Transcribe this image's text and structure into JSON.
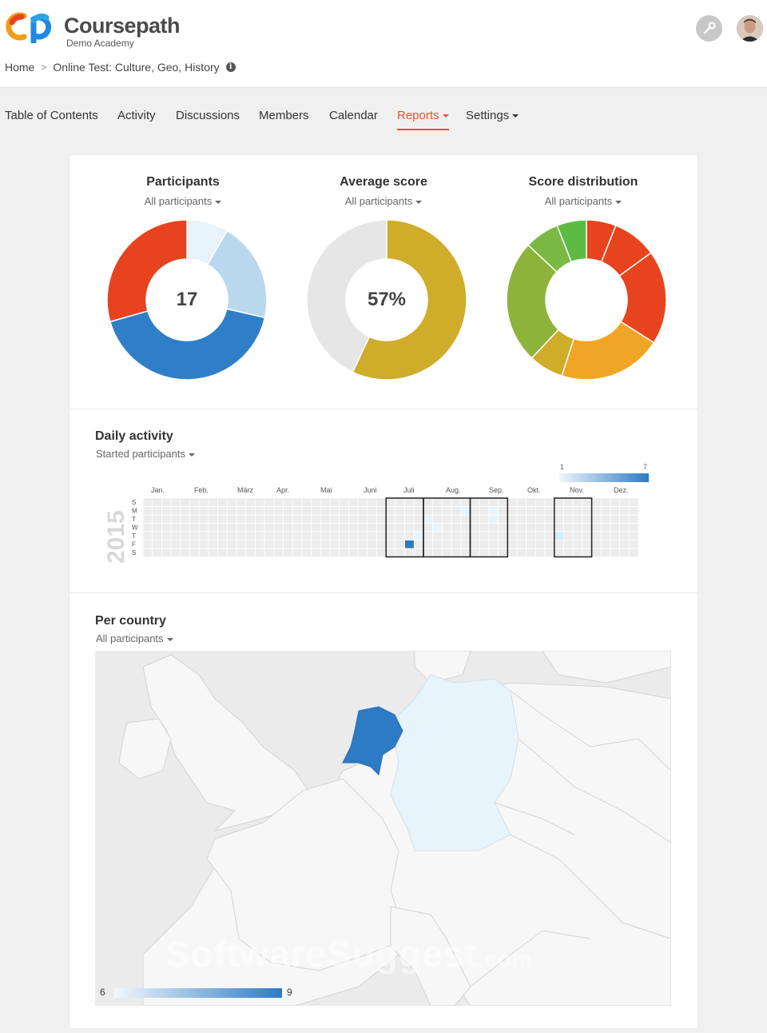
{
  "app": {
    "brand": "Coursepath",
    "subtitle": "Demo Academy"
  },
  "breadcrumb": {
    "home": "Home",
    "course": "Online Test: Culture, Geo, History"
  },
  "icons": {
    "logo": "coursepath-logo",
    "info": "info-icon",
    "settings": "wrench-icon",
    "user": "user-avatar"
  },
  "nav": {
    "items": [
      {
        "label": "Table of Contents"
      },
      {
        "label": "Activity"
      },
      {
        "label": "Discussions"
      },
      {
        "label": "Members"
      },
      {
        "label": "Calendar"
      },
      {
        "label": "Reports",
        "active": true,
        "dropdown": true
      },
      {
        "label": "Settings",
        "dropdown": true
      }
    ]
  },
  "colors": {
    "accent": "#e8542a",
    "mapHighlight": "#2d7ac5",
    "mapLight": "#e8f4fb"
  },
  "participants": {
    "title": "Participants",
    "filter": "All participants",
    "center": "17",
    "segments": [
      {
        "value": 1,
        "color": "#e8f4fb"
      },
      {
        "value": 2.4,
        "color": "#b9d8ee"
      },
      {
        "value": 5,
        "color": "#2f7fc8"
      },
      {
        "value": 3.5,
        "color": "#e8431f"
      }
    ]
  },
  "average": {
    "title": "Average score",
    "filter": "All participants",
    "center": "57%",
    "segments": [
      {
        "value": 57,
        "color": "#cfac2a"
      },
      {
        "value": 43,
        "color": "#e6e6e6"
      }
    ]
  },
  "distribution": {
    "title": "Score distribution",
    "filter": "All participants",
    "segments": [
      {
        "value": 6,
        "color": "#e8431f"
      },
      {
        "value": 9,
        "color": "#e8431f"
      },
      {
        "value": 19,
        "color": "#e8431f"
      },
      {
        "value": 21,
        "color": "#f0a526"
      },
      {
        "value": 7,
        "color": "#cfac2a"
      },
      {
        "value": 25,
        "color": "#8db33a"
      },
      {
        "value": 7,
        "color": "#7ab943"
      },
      {
        "value": 6,
        "color": "#5dbb44"
      }
    ]
  },
  "daily": {
    "title": "Daily activity",
    "filter": "Started participants",
    "year": "2015",
    "legend_min": "1",
    "legend_max": "7",
    "days": [
      "S",
      "M",
      "T",
      "W",
      "T",
      "F",
      "S"
    ],
    "months": [
      "Jan.",
      "Feb.",
      "März",
      "Apr.",
      "Mai",
      "Juni",
      "Juli",
      "Aug.",
      "Sep.",
      "Okt.",
      "Nov.",
      "Dez."
    ]
  },
  "country": {
    "title": "Per country",
    "filter": "All participants",
    "legend_min": "6",
    "legend_max": "9"
  },
  "watermark": {
    "main": "SoftwareSuggest",
    "suffix": ".com"
  }
}
